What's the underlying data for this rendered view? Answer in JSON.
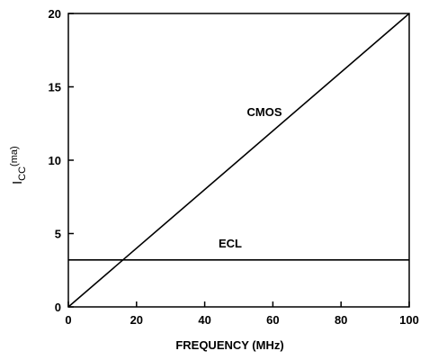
{
  "chart_data": {
    "type": "line",
    "title": "",
    "xlabel": "FREQUENCY (MHz)",
    "ylabel": {
      "main": "I",
      "subscript": "CC",
      "superscript": "(ma)"
    },
    "xlim": [
      0,
      100
    ],
    "ylim": [
      0,
      20
    ],
    "xticks": [
      0,
      20,
      40,
      60,
      80,
      100
    ],
    "yticks": [
      0,
      5,
      10,
      15,
      20
    ],
    "grid": false,
    "legend": "inline labels",
    "series": [
      {
        "name": "CMOS",
        "x": [
          0,
          100
        ],
        "y": [
          0,
          20
        ],
        "color": "#000000"
      },
      {
        "name": "ECL",
        "x": [
          0,
          100
        ],
        "y": [
          3.2,
          3.2
        ],
        "color": "#000000"
      }
    ]
  }
}
